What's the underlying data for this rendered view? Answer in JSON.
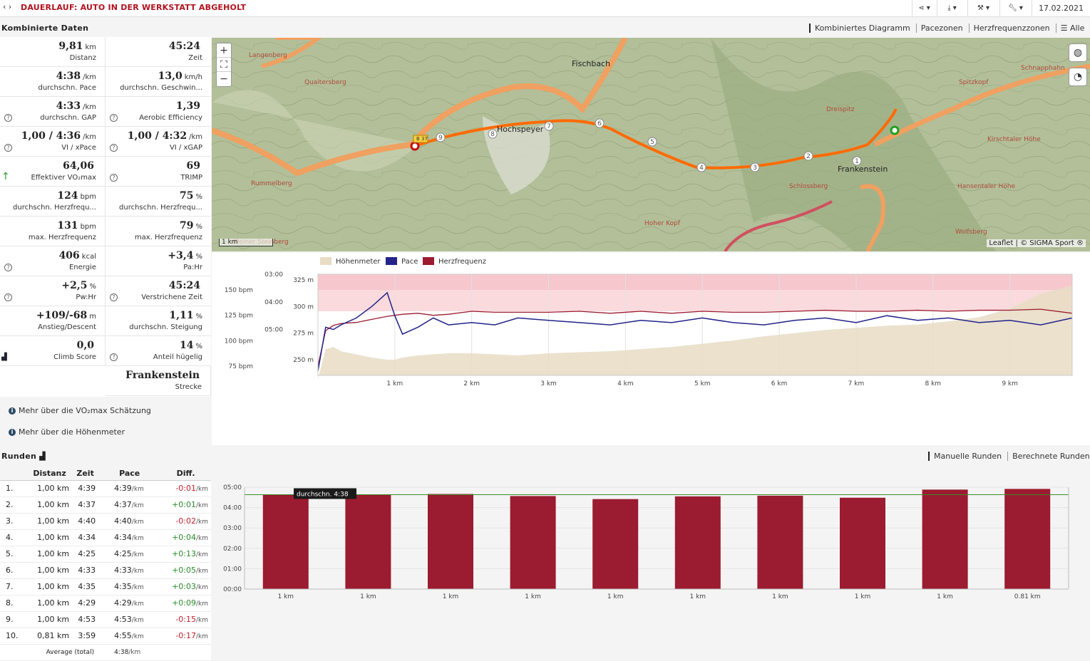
{
  "header": {
    "back_icon": "chevron-left-right-icon",
    "title": "DAUERLAUF: AUTO IN DER WERKSTATT ABGEHOLT",
    "date": "17.02.2021",
    "toolbar_icons": [
      "share-icon",
      "download-icon",
      "tools-icon",
      "wrench-icon"
    ]
  },
  "combined": {
    "heading": "Kombinierte Daten",
    "tabs": [
      "Kombiniertes Diagramm",
      "Pacezonen",
      "Herzfrequenzzonen",
      "Alle"
    ]
  },
  "stats": [
    {
      "value": "9,81",
      "unit": "km",
      "label": "Distanz"
    },
    {
      "value": "45:24",
      "unit": "",
      "label": "Zeit"
    },
    {
      "value": "4:38",
      "unit": "/km",
      "label": "durchschn. Pace"
    },
    {
      "value": "13,0",
      "unit": "km/h",
      "label": "durchschn. Geschwin..."
    },
    {
      "value": "4:33",
      "unit": "/km",
      "label": "durchschn. GAP"
    },
    {
      "value": "1,39",
      "unit": "",
      "label": "Aerobic Efficiency"
    },
    {
      "value": "1,00 / 4:36",
      "unit": "/km",
      "label": "VI / xPace"
    },
    {
      "value": "1,00 / 4:32",
      "unit": "/km",
      "label": "VI / xGAP"
    },
    {
      "value": "64,06",
      "unit": "",
      "label": "Effektiver VO₂max"
    },
    {
      "value": "69",
      "unit": "",
      "label": "TRIMP"
    },
    {
      "value": "124",
      "unit": "bpm",
      "label": "durchschn. Herzfrequ..."
    },
    {
      "value": "75",
      "unit": "%",
      "label": "durchschn. Herzfrequ..."
    },
    {
      "value": "131",
      "unit": "bpm",
      "label": "max. Herzfrequenz"
    },
    {
      "value": "79",
      "unit": "%",
      "label": "max. Herzfrequenz"
    },
    {
      "value": "406",
      "unit": "kcal",
      "label": "Energie"
    },
    {
      "value": "+3,4",
      "unit": "%",
      "label": "Pa:Hr"
    },
    {
      "value": "+2,5",
      "unit": "%",
      "label": "Pw:Hr"
    },
    {
      "value": "45:24",
      "unit": "",
      "label": "Verstrichene Zeit"
    },
    {
      "value": "+109/-68",
      "unit": "m",
      "label": "Anstieg/Descent"
    },
    {
      "value": "1,11",
      "unit": "%",
      "label": "durchschn. Steigung"
    },
    {
      "value": "0,0",
      "unit": "",
      "label": "Climb Score"
    },
    {
      "value": "14",
      "unit": "%",
      "label": "Anteil hügelig"
    },
    {
      "value": "Frankenstein",
      "unit": "",
      "label": "Strecke"
    }
  ],
  "info_links": [
    "Mehr über die VO₂max Schätzung",
    "Mehr über die Höhenmeter"
  ],
  "map": {
    "places": [
      "Langenberg",
      "Quaitersberg",
      "Fischbach",
      "Hochspeyer",
      "Frankenstein",
      "Dreispitz",
      "Spitzkopf",
      "Schnapphahn",
      "Kirschtaler Höhe",
      "Hansentaler Höhe",
      "Rummelberg",
      "Schlossberg",
      "Hoher Kopf",
      "Wolfsberg",
      "Kleiner Steinberg"
    ],
    "road_label": "B 37",
    "scale": "1 km",
    "attribution": "Leaflet | © SIGMA Sport ®",
    "zoom_in": "+",
    "zoom_out": "−",
    "fullscreen_icon": "fullscreen-icon",
    "layers_icon": "globe-icon",
    "dashboard_icon": "speedometer-icon"
  },
  "chart_data": [
    {
      "type": "line",
      "legend": [
        "Höhenmeter",
        "Pace",
        "Herzfrequenz"
      ],
      "colors": {
        "elevation": "#e8dcc4",
        "pace": "#23238a",
        "hr": "#9b1b30"
      },
      "hr_ticks": [
        "150 bpm",
        "125 bpm",
        "100 bpm",
        "75 bpm"
      ],
      "pace_ticks": [
        "03:00",
        "04:00",
        "05:00"
      ],
      "elev_ticks": [
        "325 m",
        "300 m",
        "275 m",
        "250 m"
      ],
      "x_ticks": [
        "1 km",
        "2 km",
        "3 km",
        "4 km",
        "5 km",
        "6 km",
        "7 km",
        "8 km",
        "9 km"
      ],
      "x_km": [
        0,
        0.1,
        0.2,
        0.3,
        0.5,
        0.7,
        0.9,
        1.0,
        1.1,
        1.3,
        1.5,
        1.7,
        2.0,
        2.3,
        2.6,
        3.0,
        3.4,
        3.8,
        4.2,
        4.6,
        5.0,
        5.4,
        5.8,
        6.2,
        6.6,
        7.0,
        7.4,
        7.8,
        8.2,
        8.6,
        9.0,
        9.4,
        9.81
      ],
      "elevation_m": [
        232,
        260,
        262,
        258,
        255,
        252,
        250,
        250,
        252,
        254,
        255,
        256,
        256,
        255,
        254,
        256,
        257,
        258,
        260,
        262,
        265,
        268,
        272,
        275,
        278,
        280,
        282,
        283,
        286,
        290,
        298,
        312,
        320
      ],
      "hr_bpm": [
        75,
        110,
        115,
        117,
        118,
        121,
        124,
        125,
        126,
        127,
        125,
        126,
        129,
        128,
        128,
        128,
        129,
        127,
        129,
        127,
        129,
        128,
        128,
        129,
        130,
        129,
        129,
        130,
        129,
        130,
        130,
        131,
        127
      ],
      "pace": [
        "06:30",
        "04:55",
        "05:00",
        "04:50",
        "04:35",
        "04:10",
        "03:40",
        "04:30",
        "05:10",
        "04:55",
        "04:35",
        "04:50",
        "04:45",
        "04:50",
        "04:35",
        "04:40",
        "04:45",
        "04:50",
        "04:40",
        "04:45",
        "04:35",
        "04:45",
        "04:50",
        "04:40",
        "04:35",
        "04:45",
        "04:30",
        "04:40",
        "04:35",
        "04:45",
        "04:40",
        "04:50",
        "04:35"
      ]
    },
    {
      "type": "bar",
      "categories": [
        "1 km",
        "1 km",
        "1 km",
        "1 km",
        "1 km",
        "1 km",
        "1 km",
        "1 km",
        "1 km",
        "0.81 km"
      ],
      "values_pace": [
        "4:39",
        "4:37",
        "4:40",
        "4:34",
        "4:25",
        "4:33",
        "4:35",
        "4:29",
        "4:53",
        "4:55"
      ],
      "values_seconds": [
        279,
        277,
        280,
        274,
        265,
        273,
        275,
        269,
        293,
        295
      ],
      "y_ticks": [
        "05:00",
        "04:00",
        "03:00",
        "02:00",
        "01:00",
        "00:00"
      ],
      "average_label": "durchschn. 4:38",
      "average_seconds": 278,
      "ylim": [
        0,
        300
      ],
      "bar_color": "#9b1b30",
      "avg_line_color": "#3a8a2a"
    }
  ],
  "laps": {
    "heading": "Runden",
    "heading_icon": "chart-icon",
    "tabs": [
      "Manuelle Runden",
      "Berechnete Runden"
    ],
    "columns": [
      "",
      "Distanz",
      "Zeit",
      "Pace",
      "Diff."
    ],
    "rows": [
      {
        "n": "1.",
        "dist": "1,00 km",
        "time": "4:39",
        "pace": "4:39",
        "diff": "-0:01",
        "diff_color": "#c0202a"
      },
      {
        "n": "2.",
        "dist": "1,00 km",
        "time": "4:37",
        "pace": "4:37",
        "diff": "+0:01",
        "diff_color": "#2a8a2a"
      },
      {
        "n": "3.",
        "dist": "1,00 km",
        "time": "4:40",
        "pace": "4:40",
        "diff": "-0:02",
        "diff_color": "#c0202a"
      },
      {
        "n": "4.",
        "dist": "1,00 km",
        "time": "4:34",
        "pace": "4:34",
        "diff": "+0:04",
        "diff_color": "#2a8a2a"
      },
      {
        "n": "5.",
        "dist": "1,00 km",
        "time": "4:25",
        "pace": "4:25",
        "diff": "+0:13",
        "diff_color": "#2a8a2a"
      },
      {
        "n": "6.",
        "dist": "1,00 km",
        "time": "4:33",
        "pace": "4:33",
        "diff": "+0:05",
        "diff_color": "#2a8a2a"
      },
      {
        "n": "7.",
        "dist": "1,00 km",
        "time": "4:35",
        "pace": "4:35",
        "diff": "+0:03",
        "diff_color": "#2a8a2a"
      },
      {
        "n": "8.",
        "dist": "1,00 km",
        "time": "4:29",
        "pace": "4:29",
        "diff": "+0:09",
        "diff_color": "#2a8a2a"
      },
      {
        "n": "9.",
        "dist": "1,00 km",
        "time": "4:53",
        "pace": "4:53",
        "diff": "-0:15",
        "diff_color": "#c0202a"
      },
      {
        "n": "10.",
        "dist": "0,81 km",
        "time": "3:59",
        "pace": "4:55",
        "diff": "-0:17",
        "diff_color": "#c0202a"
      }
    ],
    "unit": "/km",
    "footer_label": "Average (total)",
    "footer_pace": "4:38"
  }
}
